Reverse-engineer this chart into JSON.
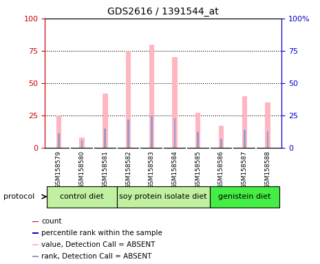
{
  "title": "GDS2616 / 1391544_at",
  "samples": [
    "GSM158579",
    "GSM158580",
    "GSM158581",
    "GSM158582",
    "GSM158583",
    "GSM158584",
    "GSM158585",
    "GSM158586",
    "GSM158587",
    "GSM158588"
  ],
  "pink_bars": [
    25,
    8,
    42,
    75,
    80,
    70,
    27,
    17,
    40,
    35
  ],
  "blue_bars": [
    11,
    6,
    15,
    22,
    25,
    23,
    12,
    7,
    14,
    13
  ],
  "groups": [
    {
      "label": "control diet",
      "start": 0,
      "end": 3
    },
    {
      "label": "soy protein isolate diet",
      "start": 3,
      "end": 7
    },
    {
      "label": "genistein diet",
      "start": 7,
      "end": 10
    }
  ],
  "group_colors": [
    "#c0f0a0",
    "#c0f0a0",
    "#44ee44"
  ],
  "ylim": [
    0,
    100
  ],
  "yticks": [
    0,
    25,
    50,
    75,
    100
  ],
  "yticklabels_left": [
    "0",
    "25",
    "50",
    "75",
    "100"
  ],
  "yticklabels_right": [
    "0",
    "25",
    "50",
    "75",
    "100%"
  ],
  "left_tick_color": "#cc0000",
  "right_tick_color": "#0000cc",
  "pink_color": "#FFB6C1",
  "blue_color": "#9999CC",
  "red_color": "#cc0000",
  "dark_blue_color": "#0000cc",
  "legend_items": [
    {
      "color": "#cc0000",
      "label": "count"
    },
    {
      "color": "#0000cc",
      "label": "percentile rank within the sample"
    },
    {
      "color": "#FFB6C1",
      "label": "value, Detection Call = ABSENT"
    },
    {
      "color": "#9999CC",
      "label": "rank, Detection Call = ABSENT"
    }
  ],
  "protocol_label": "protocol",
  "sample_bg_color": "#cccccc",
  "plot_bg_color": "#ffffff"
}
